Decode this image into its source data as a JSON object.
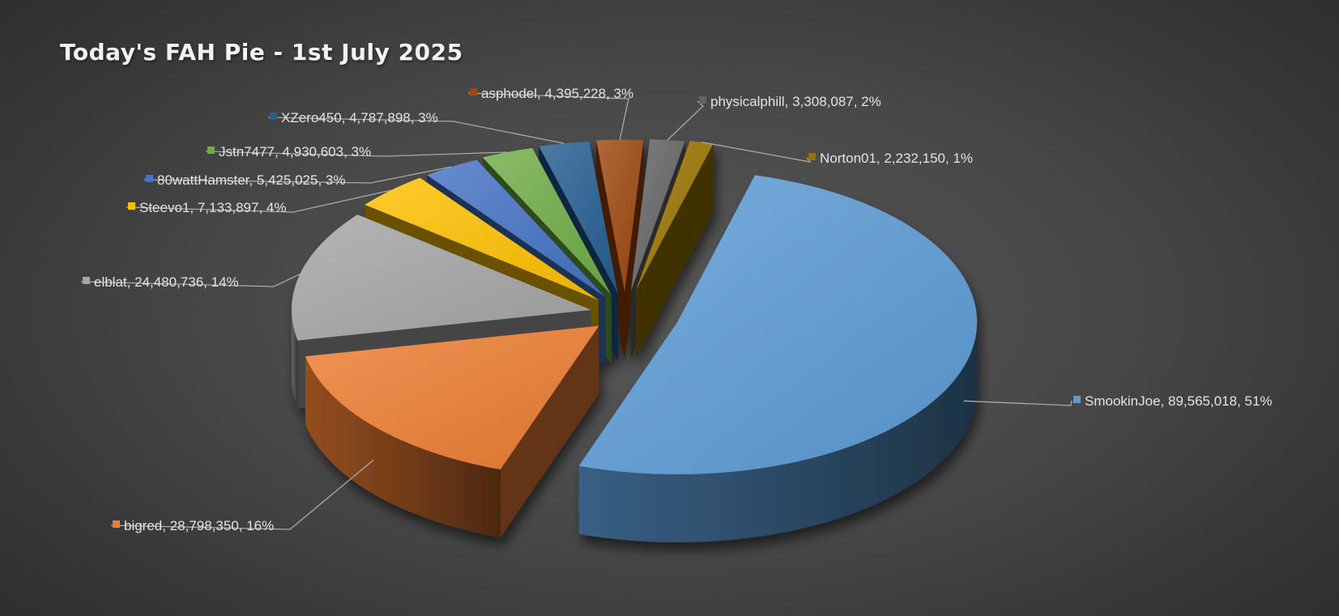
{
  "chart_data": {
    "type": "pie",
    "variant": "3d-exploded",
    "title": "Today's FAH Pie - 1st July 2025",
    "legend": "none",
    "slices": [
      {
        "label": "SmookinJoe",
        "value": 89565018,
        "value_text": "89,565,018",
        "percent": "51%",
        "color": "#5b9bd5"
      },
      {
        "label": "bigred",
        "value": 28798350,
        "value_text": "28,798,350",
        "percent": "16%",
        "color": "#ed7d31"
      },
      {
        "label": "elblat",
        "value": 24480736,
        "value_text": "24,480,736",
        "percent": "14%",
        "color": "#a5a5a5"
      },
      {
        "label": "Steevo1",
        "value": 7133897,
        "value_text": "7,133,897",
        "percent": "4%",
        "color": "#ffc000"
      },
      {
        "label": "80wattHamster",
        "value": 5425025,
        "value_text": "5,425,025",
        "percent": "3%",
        "color": "#4472c4"
      },
      {
        "label": "Jstn7477",
        "value": 4930603,
        "value_text": "4,930,603",
        "percent": "3%",
        "color": "#70ad47"
      },
      {
        "label": "XZero450",
        "value": 4787898,
        "value_text": "4,787,898",
        "percent": "3%",
        "color": "#255e91"
      },
      {
        "label": "asphodel",
        "value": 4395228,
        "value_text": "4,395,228",
        "percent": "3%",
        "color": "#9e480e"
      },
      {
        "label": "physicalphill",
        "value": 3308087,
        "value_text": "3,308,087",
        "percent": "2%",
        "color": "#636363"
      },
      {
        "label": "Norton01",
        "value": 2232150,
        "value_text": "2,232,150",
        "percent": "1%",
        "color": "#997300"
      }
    ]
  }
}
